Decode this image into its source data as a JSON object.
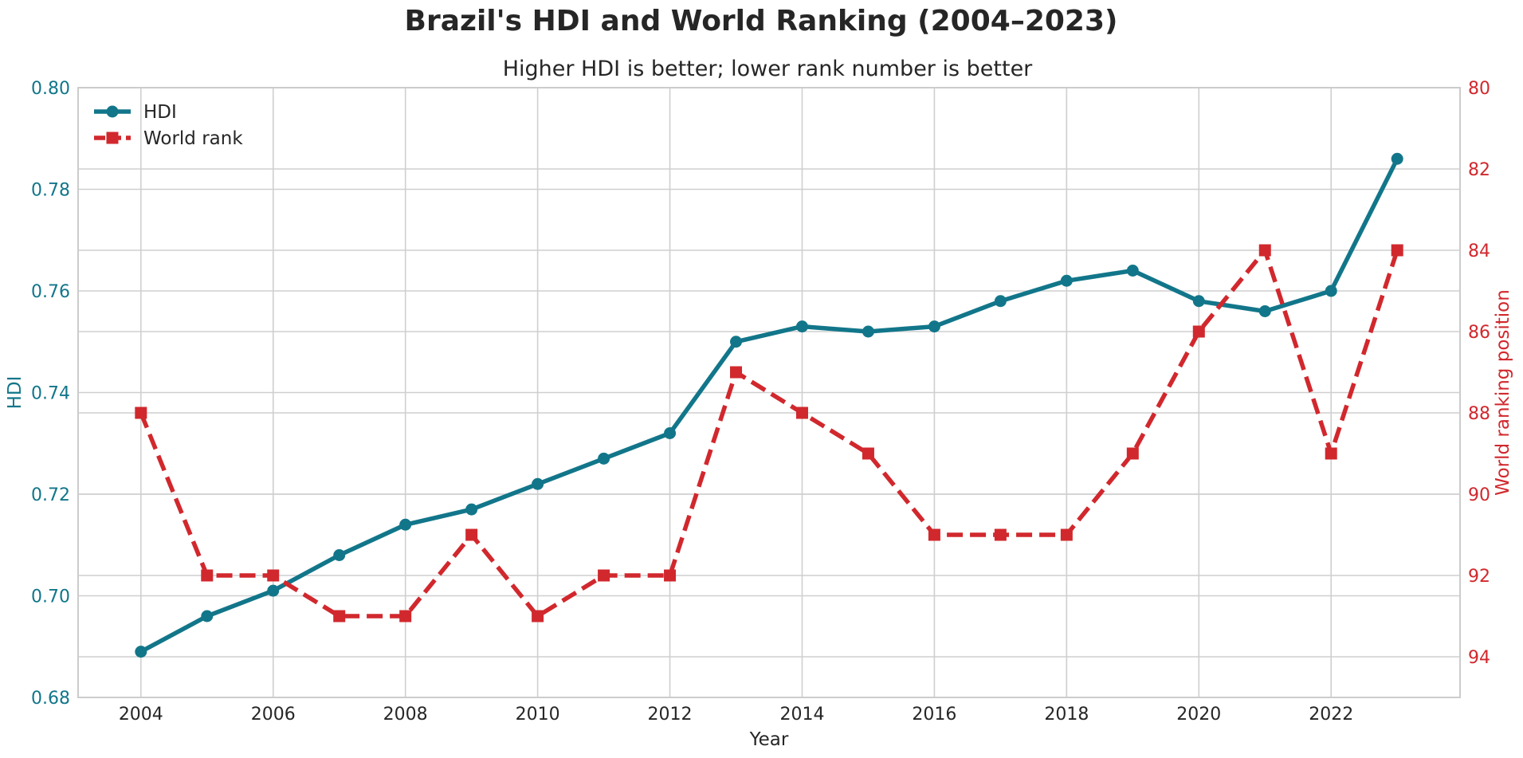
{
  "chart_data": {
    "type": "line",
    "title": "Brazil's HDI and World Ranking (2004–2023)",
    "subtitle": "Higher HDI is better; lower rank number is better",
    "xlabel": "Year",
    "ylabel_left": "HDI",
    "ylabel_right": "World ranking position",
    "x": [
      2004,
      2005,
      2006,
      2007,
      2008,
      2009,
      2010,
      2011,
      2012,
      2013,
      2014,
      2015,
      2016,
      2017,
      2018,
      2019,
      2020,
      2021,
      2022,
      2023
    ],
    "xlim": [
      2003.05,
      2023.95
    ],
    "x_ticks": [
      2004,
      2006,
      2008,
      2010,
      2012,
      2014,
      2016,
      2018,
      2020,
      2022
    ],
    "ylim_left": [
      0.68,
      0.8
    ],
    "y_ticks_left": [
      0.68,
      0.7,
      0.72,
      0.74,
      0.76,
      0.78,
      0.8
    ],
    "ylim_right": [
      95,
      80
    ],
    "y_ticks_right": [
      80,
      82,
      84,
      86,
      88,
      90,
      92,
      94
    ],
    "right_axis_inverted": true,
    "grid": true,
    "legend_position": "top-left",
    "series": [
      {
        "name": "HDI",
        "axis": "left",
        "color": "#12768a",
        "style": "solid",
        "marker": "circle",
        "values": [
          0.689,
          0.696,
          0.701,
          0.708,
          0.714,
          0.717,
          0.722,
          0.727,
          0.732,
          0.75,
          0.753,
          0.752,
          0.753,
          0.758,
          0.762,
          0.764,
          0.758,
          0.756,
          0.76,
          0.786
        ]
      },
      {
        "name": "World rank",
        "axis": "right",
        "color": "#d1282d",
        "style": "dashed",
        "marker": "square",
        "values": [
          88,
          92,
          92,
          93,
          93,
          91,
          93,
          92,
          92,
          87,
          88,
          89,
          91,
          91,
          91,
          89,
          86,
          84,
          89,
          84
        ]
      }
    ]
  }
}
